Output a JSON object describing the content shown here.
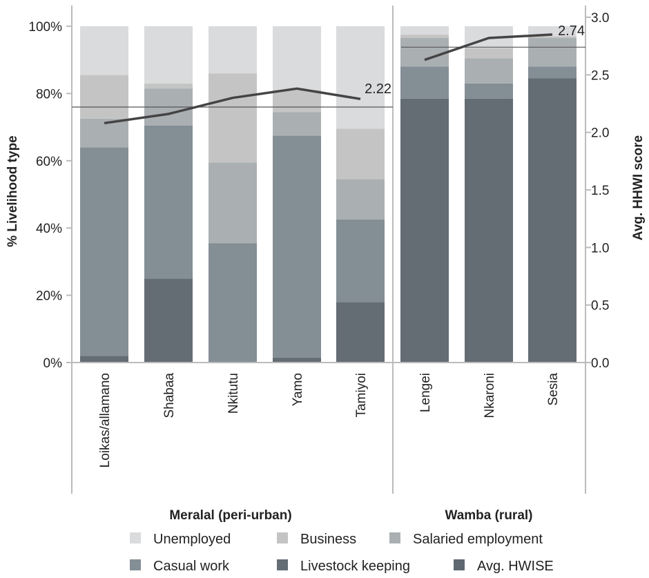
{
  "chart_data": {
    "type": "bar",
    "stacked": true,
    "categories": [
      "Loikas/allamano",
      "Shabaa",
      "Nkitutu",
      "Yamo",
      "Tamiyoi",
      "Lengei",
      "Nkaroni",
      "Sesia"
    ],
    "groups": [
      {
        "label": "Meralal (peri-urban)",
        "categories": [
          "Loikas/allamano",
          "Shabaa",
          "Nkitutu",
          "Yamo",
          "Tamiyoi"
        ]
      },
      {
        "label": "Wamba (rural)",
        "categories": [
          "Lengei",
          "Nkaroni",
          "Sesia"
        ]
      }
    ],
    "series": [
      {
        "name": "Livestock keeping",
        "color": "#646c74",
        "values": [
          2,
          25,
          0,
          1.5,
          18,
          78.5,
          78.5,
          84.5
        ]
      },
      {
        "name": "Casual work",
        "color": "#848e95",
        "values": [
          62,
          45.5,
          35.5,
          66,
          24.5,
          9.5,
          4.5,
          3.5
        ]
      },
      {
        "name": "Salaried employment",
        "color": "#aaafb2",
        "values": [
          8.5,
          11,
          24,
          7,
          12,
          8.5,
          7.5,
          8.5
        ]
      },
      {
        "name": "Business",
        "color": "#c4c4c4",
        "values": [
          13,
          1.5,
          26.5,
          6.5,
          15,
          1,
          3,
          0.5
        ]
      },
      {
        "name": "Unemployed",
        "color": "#d9dbdc",
        "values": [
          14.5,
          17,
          14,
          19,
          30.5,
          2.5,
          6.5,
          3
        ]
      }
    ],
    "line_series": {
      "name": "Avg. HWISE",
      "color": "#444444",
      "values": [
        2.08,
        2.16,
        2.3,
        2.38,
        2.29,
        2.63,
        2.82,
        2.85
      ]
    },
    "averages": [
      {
        "group": "Meralal (peri-urban)",
        "value": 2.22,
        "label": "2.22"
      },
      {
        "group": "Wamba (rural)",
        "value": 2.74,
        "label": "2.74"
      }
    ],
    "ylabel": "% Livelihood type",
    "y2label": "Avg. HHWI score",
    "ylim": [
      0,
      100
    ],
    "y2lim": [
      0,
      3.0
    ],
    "yticks": [
      "0%",
      "20%",
      "40%",
      "60%",
      "80%",
      "100%"
    ],
    "y2ticks": [
      "0.0",
      "0.5",
      "1.0",
      "1.5",
      "2.0",
      "2.5",
      "3.0"
    ],
    "legend": {
      "position": "bottom",
      "order": [
        "Unemployed",
        "Business",
        "Salaried employment",
        "Casual work",
        "Livestock keeping",
        "Avg. HWISE"
      ],
      "avg_color": "#5f6770"
    },
    "grid": false
  }
}
